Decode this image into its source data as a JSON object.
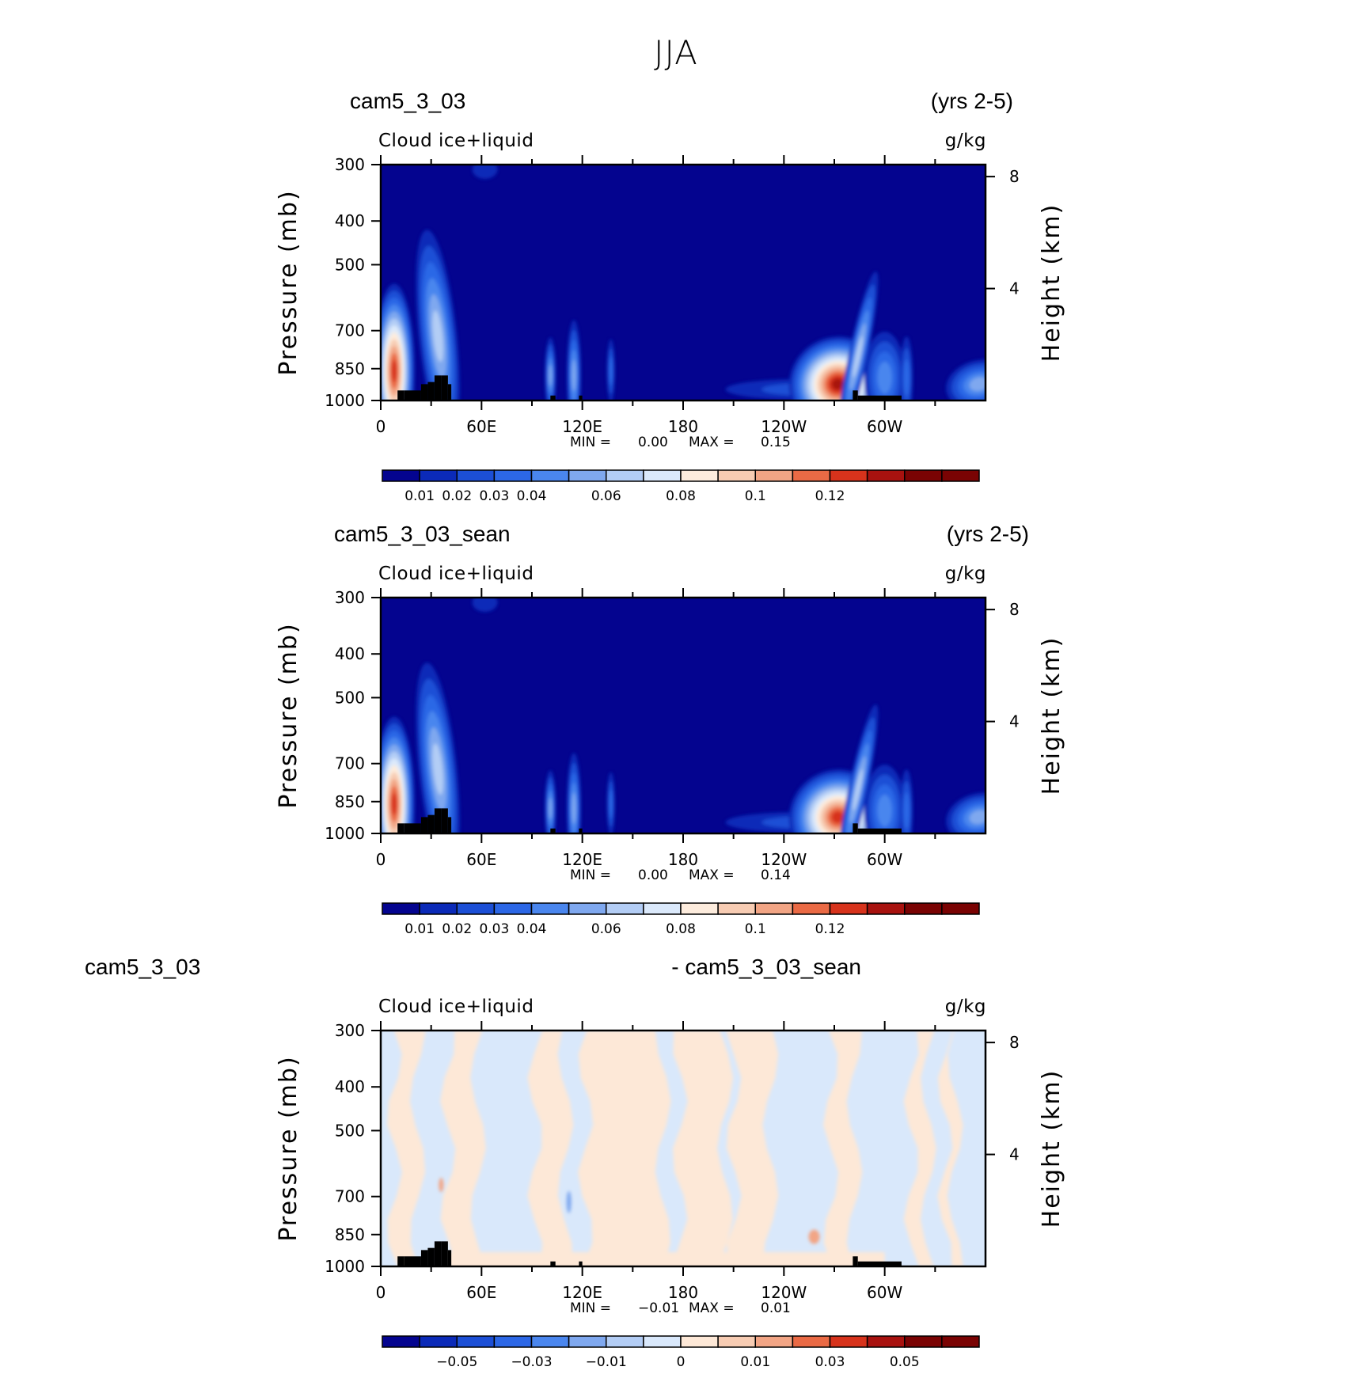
{
  "title": "JJA",
  "colors": {
    "full_palette": [
      "#04048f",
      "#0b2ab8",
      "#1c4fd6",
      "#2c67e6",
      "#4a86ee",
      "#7fa8ef",
      "#b3cdf5",
      "#dbe9fb",
      "#fdecdd",
      "#f7ccb3",
      "#f2a585",
      "#ea6a45",
      "#d7331c",
      "#a8120f",
      "#7a0303"
    ],
    "diff_palette": [
      "#04048f",
      "#0b2ab8",
      "#1c4fd6",
      "#2c67e6",
      "#4a86ee",
      "#7fa8ef",
      "#b3cdf5",
      "#d9e8fb",
      "#fde8d7",
      "#f7ccb3",
      "#f2a585",
      "#ea6a45",
      "#d7331c",
      "#a8120f",
      "#7a0303"
    ],
    "topography": "#000000"
  },
  "panels": [
    {
      "case_left": "cam5_3_03",
      "case_right": "(yrs 2-5)",
      "field": "Cloud  ice+liquid",
      "units": "g/kg",
      "stats": {
        "min_label": "MIN =",
        "min": "0.00",
        "max_label": "MAX =",
        "max": "0.15"
      },
      "colorbar_labels": [
        "0.01",
        "0.02",
        "0.03",
        "0.04",
        "0.06",
        "0.08",
        "0.1",
        "0.12"
      ]
    },
    {
      "case_left": "cam5_3_03_sean",
      "case_right": "(yrs 2-5)",
      "field": "Cloud  ice+liquid",
      "units": "g/kg",
      "stats": {
        "min_label": "MIN =",
        "min": "0.00",
        "max_label": "MAX =",
        "max": "0.14"
      },
      "colorbar_labels": [
        "0.01",
        "0.02",
        "0.03",
        "0.04",
        "0.06",
        "0.08",
        "0.1",
        "0.12"
      ]
    },
    {
      "case_left": "cam5_3_03",
      "case_right": "- cam5_3_03_sean",
      "field": "Cloud  ice+liquid",
      "units": "g/kg",
      "stats": {
        "min_label": "MIN =",
        "min": "−0.01",
        "max_label": "MAX =",
        "max": "0.01"
      },
      "colorbar_labels": [
        "−0.05",
        "−0.03",
        "−0.01",
        "0",
        "0.01",
        "0.03",
        "0.05"
      ]
    }
  ],
  "chart_data": [
    {
      "type": "heatmap",
      "title": "cam5_3_03 (yrs 2-5)",
      "variable": "Cloud  ice+liquid",
      "units": "g/kg",
      "xlabel": "",
      "ylabel": "Pressure  (mb)",
      "y2label": "Height  (km)",
      "x_ticks": [
        "0",
        "60E",
        "120E",
        "180",
        "120W",
        "60W"
      ],
      "x_range_deg": [
        0,
        360
      ],
      "y_ticks": [
        "300",
        "400",
        "500",
        "700",
        "850",
        "1000"
      ],
      "y_range_mb": [
        300,
        1000
      ],
      "y_scale": "log",
      "y2_ticks": [
        "8",
        "4"
      ],
      "contour_levels": [
        0.01,
        0.02,
        0.03,
        0.04,
        0.05,
        0.06,
        0.07,
        0.08,
        0.09,
        0.1,
        0.11,
        0.12,
        0.13
      ],
      "min": 0.0,
      "max": 0.15,
      "features": [
        {
          "lon": 11,
          "p": 865,
          "value": 0.13
        },
        {
          "lon": 33,
          "p": 700,
          "value": 0.05
        },
        {
          "lon": 102,
          "p": 870,
          "value": 0.03
        },
        {
          "lon": 114,
          "p": 870,
          "value": 0.035
        },
        {
          "lon": 138,
          "p": 860,
          "value": 0.02
        },
        {
          "lon": 277,
          "p": 930,
          "value": 0.14
        },
        {
          "lon": 300,
          "p": 860,
          "value": 0.03
        },
        {
          "lon": 355,
          "p": 900,
          "value": 0.04
        }
      ]
    },
    {
      "type": "heatmap",
      "title": "cam5_3_03_sean (yrs 2-5)",
      "variable": "Cloud  ice+liquid",
      "units": "g/kg",
      "xlabel": "",
      "ylabel": "Pressure  (mb)",
      "y2label": "Height  (km)",
      "x_ticks": [
        "0",
        "60E",
        "120E",
        "180",
        "120W",
        "60W"
      ],
      "x_range_deg": [
        0,
        360
      ],
      "y_ticks": [
        "300",
        "400",
        "500",
        "700",
        "850",
        "1000"
      ],
      "y_range_mb": [
        300,
        1000
      ],
      "y_scale": "log",
      "y2_ticks": [
        "8",
        "4"
      ],
      "contour_levels": [
        0.01,
        0.02,
        0.03,
        0.04,
        0.05,
        0.06,
        0.07,
        0.08,
        0.09,
        0.1,
        0.11,
        0.12,
        0.13
      ],
      "min": 0.0,
      "max": 0.14,
      "features": [
        {
          "lon": 11,
          "p": 865,
          "value": 0.12
        },
        {
          "lon": 33,
          "p": 700,
          "value": 0.05
        },
        {
          "lon": 102,
          "p": 870,
          "value": 0.03
        },
        {
          "lon": 114,
          "p": 870,
          "value": 0.035
        },
        {
          "lon": 138,
          "p": 860,
          "value": 0.02
        },
        {
          "lon": 277,
          "p": 930,
          "value": 0.13
        },
        {
          "lon": 300,
          "p": 860,
          "value": 0.03
        },
        {
          "lon": 355,
          "p": 900,
          "value": 0.04
        }
      ]
    },
    {
      "type": "heatmap",
      "title": "cam5_3_03 - cam5_3_03_sean",
      "variable": "Cloud  ice+liquid",
      "units": "g/kg",
      "xlabel": "",
      "ylabel": "Pressure  (mb)",
      "y2label": "Height  (km)",
      "x_ticks": [
        "0",
        "60E",
        "120E",
        "180",
        "120W",
        "60W"
      ],
      "x_range_deg": [
        0,
        360
      ],
      "y_ticks": [
        "300",
        "400",
        "500",
        "700",
        "850",
        "1000"
      ],
      "y_range_mb": [
        300,
        1000
      ],
      "y_scale": "log",
      "y2_ticks": [
        "8",
        "4"
      ],
      "contour_levels": [
        -0.06,
        -0.05,
        -0.04,
        -0.03,
        -0.02,
        -0.01,
        0,
        0.01,
        0.02,
        0.03,
        0.04,
        0.05,
        0.06
      ],
      "min": -0.01,
      "max": 0.01,
      "features": [
        {
          "lon": 36,
          "p": 660,
          "value": 0.01
        },
        {
          "lon": 112,
          "p": 720,
          "value": -0.01
        },
        {
          "lon": 258,
          "p": 860,
          "value": 0.01
        }
      ]
    }
  ]
}
